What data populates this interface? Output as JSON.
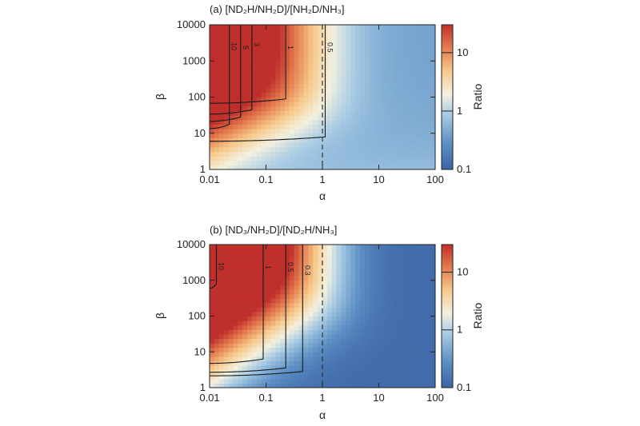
{
  "chart_data": [
    {
      "type": "heatmap",
      "title": "(a) [ND₂H/NH₂D]/[NH₂D/NH₃]",
      "xlabel": "α",
      "ylabel": "β",
      "xscale": "log",
      "yscale": "log",
      "xlim": [
        0.01,
        100
      ],
      "ylim": [
        1,
        10000
      ],
      "xticks": [
        "0.01",
        "0.1",
        "1",
        "10",
        "100"
      ],
      "yticks": [
        "1",
        "10",
        "100",
        "1000",
        "10000"
      ],
      "colorbar": {
        "label": "Ratio",
        "scale": "log",
        "range": [
          0.1,
          30
        ],
        "ticks": [
          "0.1",
          "1",
          "10"
        ]
      },
      "dashed_line_x": 1,
      "contour_levels": [
        {
          "value": 10,
          "label": "10"
        },
        {
          "value": 5,
          "label": "5"
        },
        {
          "value": 3,
          "label": "3"
        },
        {
          "value": 1,
          "label": "1"
        },
        {
          "value": 0.5,
          "label": "0.5"
        }
      ]
    },
    {
      "type": "heatmap",
      "title": "(b) [ND₃/NH₂D]/[ND₂H/NH₃]",
      "xlabel": "α",
      "ylabel": "β",
      "xscale": "log",
      "yscale": "log",
      "xlim": [
        0.01,
        100
      ],
      "ylim": [
        1,
        10000
      ],
      "xticks": [
        "0.01",
        "0.1",
        "1",
        "10",
        "100"
      ],
      "yticks": [
        "1",
        "10",
        "100",
        "1000",
        "10000"
      ],
      "colorbar": {
        "label": "Ratio",
        "scale": "log",
        "range": [
          0.1,
          30
        ],
        "ticks": [
          "0.1",
          "1",
          "10"
        ]
      },
      "dashed_line_x": 1,
      "contour_levels": [
        {
          "value": 10,
          "label": "10"
        },
        {
          "value": 1,
          "label": "1"
        },
        {
          "value": 0.5,
          "label": "0.5"
        },
        {
          "value": 0.3,
          "label": "0.3"
        }
      ]
    }
  ]
}
